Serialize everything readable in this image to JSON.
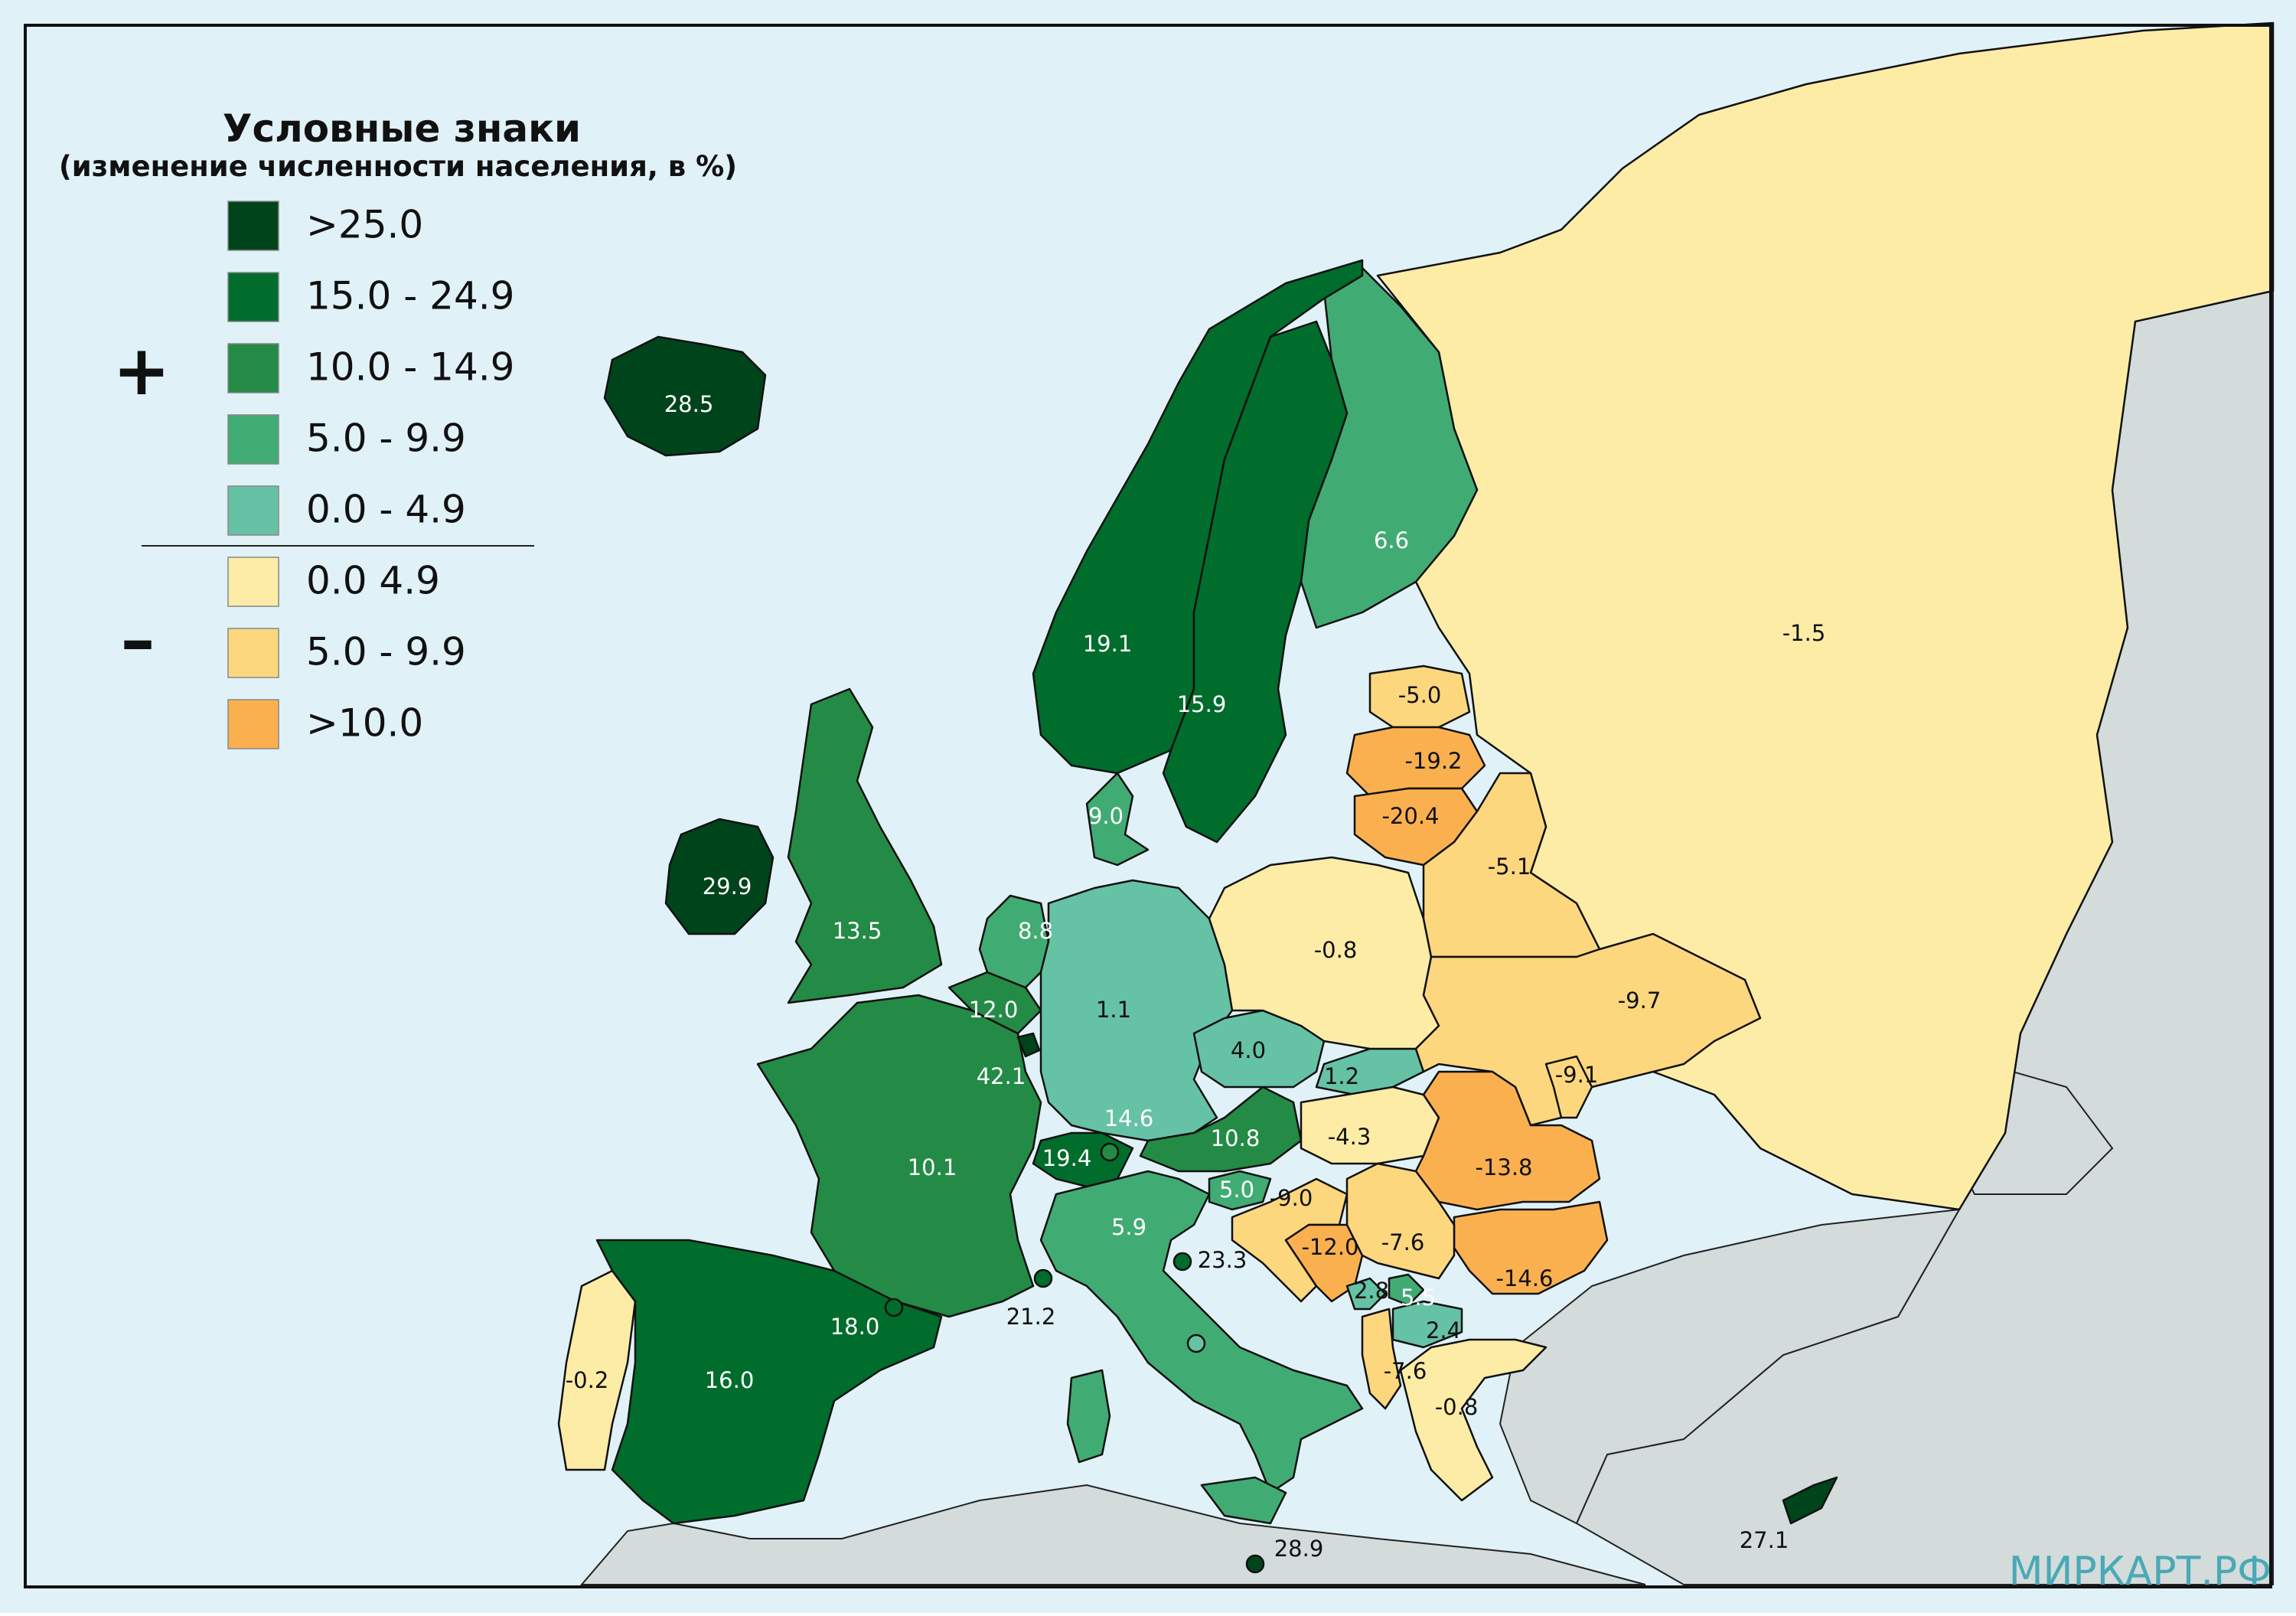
{
  "legend": {
    "title": "Условные знаки",
    "subtitle": "(изменение численности населения, в %)",
    "plus_sign": "+",
    "minus_sign": "–",
    "classes": [
      {
        "label": ">25.0",
        "color": "#00441b"
      },
      {
        "label": "15.0 - 24.9",
        "color": "#006d2c"
      },
      {
        "label": "10.0 - 14.9",
        "color": "#238b45"
      },
      {
        "label": "5.0 - 9.9",
        "color": "#41ab74"
      },
      {
        "label": "0.0 - 4.9",
        "color": "#66c2a4"
      },
      {
        "label": "0.0 4.9",
        "color": "#fdeca6"
      },
      {
        "label": "5.0 - 9.9",
        "color": "#fdd77e"
      },
      {
        "label": ">10.0",
        "color": "#fbb04f"
      }
    ]
  },
  "colors": {
    "sea": "#e0f1f8",
    "non_map_land": "#d3dbdb",
    "border": "#111111",
    "brand": "#4aa9b5"
  },
  "brand": "МИРКАРТ.РФ",
  "regions": {
    "iceland": {
      "value": "28.5",
      "class": 0
    },
    "ireland": {
      "value": "29.9",
      "class": 0
    },
    "uk": {
      "value": "13.5",
      "class": 2
    },
    "norway": {
      "value": "19.1",
      "class": 1
    },
    "sweden": {
      "value": "15.9",
      "class": 1
    },
    "finland": {
      "value": "6.6",
      "class": 3
    },
    "russia": {
      "value": "-1.5",
      "class": 5
    },
    "estonia": {
      "value": "-5.0",
      "class": 6
    },
    "latvia": {
      "value": "-19.2",
      "class": 7
    },
    "lithuania": {
      "value": "-20.4",
      "class": 7
    },
    "belarus": {
      "value": "-5.1",
      "class": 6
    },
    "ukraine": {
      "value": "-9.7",
      "class": 6
    },
    "moldova": {
      "value": "-9.1",
      "class": 6
    },
    "poland": {
      "value": "-0.8",
      "class": 5
    },
    "germany": {
      "value": "1.1",
      "class": 4
    },
    "denmark": {
      "value": "9.0",
      "class": 3
    },
    "netherlands": {
      "value": "8.8",
      "class": 3
    },
    "belgium": {
      "value": "12.0",
      "class": 2
    },
    "luxembourg": {
      "value": "42.1",
      "class": 0
    },
    "france": {
      "value": "10.1",
      "class": 2
    },
    "switzerland": {
      "value": "19.4",
      "class": 1
    },
    "liechtenstein": {
      "value": "14.6",
      "class": 2
    },
    "czechia": {
      "value": "4.0",
      "class": 4
    },
    "slovakia": {
      "value": "1.2",
      "class": 4
    },
    "austria": {
      "value": "10.8",
      "class": 2
    },
    "hungary": {
      "value": "-4.3",
      "class": 5
    },
    "romania": {
      "value": "-13.8",
      "class": 7
    },
    "bulgaria": {
      "value": "-14.6",
      "class": 7
    },
    "slovenia": {
      "value": "5.0",
      "class": 3
    },
    "croatia": {
      "value": "-9.0",
      "class": 6
    },
    "bosnia": {
      "value": "-12.0",
      "class": 7
    },
    "serbia": {
      "value": "-7.6",
      "class": 6
    },
    "montenegro": {
      "value": "2.8",
      "class": 4
    },
    "kosovo": {
      "value": "5.5",
      "class": 3
    },
    "north_macedonia": {
      "value": "2.4",
      "class": 4
    },
    "albania": {
      "value": "-7.6",
      "class": 6
    },
    "greece": {
      "value": "-0.8",
      "class": 5
    },
    "italy": {
      "value": "5.9",
      "class": 3
    },
    "san_marino": {
      "value": "23.3",
      "class": 1
    },
    "monaco": {
      "value": "21.2",
      "class": 1
    },
    "andorra": {
      "value": "18.0",
      "class": 1
    },
    "spain": {
      "value": "16.0",
      "class": 1
    },
    "portugal": {
      "value": "-0.2",
      "class": 5
    },
    "malta": {
      "value": "28.9",
      "class": 0
    },
    "cyprus": {
      "value": "27.1",
      "class": 0
    }
  }
}
